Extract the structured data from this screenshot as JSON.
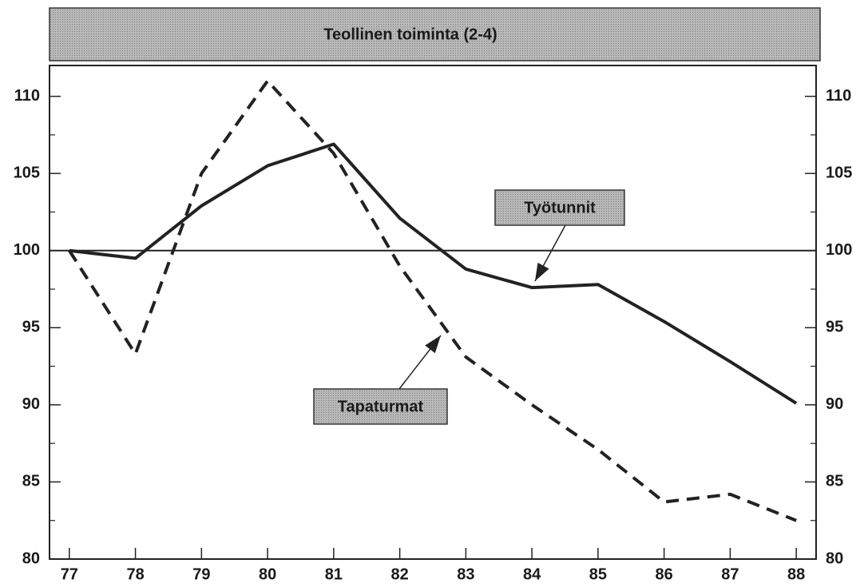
{
  "chart_data": {
    "type": "line",
    "title": "Teollinen toiminta (2-4)",
    "x": [
      77,
      78,
      79,
      80,
      81,
      82,
      83,
      84,
      85,
      86,
      87,
      88
    ],
    "series": [
      {
        "name": "Työtunnit",
        "color": "#222222",
        "dash": false,
        "values": [
          100,
          99.5,
          102.9,
          105.5,
          106.9,
          102.1,
          98.8,
          97.6,
          97.8,
          95.4,
          92.8,
          90.1
        ]
      },
      {
        "name": "Tapaturmat",
        "color": "#222222",
        "dash": true,
        "values": [
          100,
          93.3,
          105,
          111,
          106.3,
          99,
          93.1,
          90,
          87.1,
          83.7,
          84.2,
          82.5
        ]
      }
    ],
    "reference_line": 100,
    "xlim": [
      76.7,
      88.3
    ],
    "xticks": [
      77,
      78,
      79,
      80,
      81,
      82,
      83,
      84,
      85,
      86,
      87,
      88
    ],
    "ylim": [
      80,
      112
    ],
    "yticks": [
      80,
      85,
      90,
      95,
      100,
      105,
      110
    ],
    "minor_yticks": [
      82.5,
      87.5,
      92.5,
      97.5,
      102.5,
      107.5
    ],
    "y2ticks": [
      80,
      85,
      90,
      95,
      100,
      105,
      110
    ]
  }
}
